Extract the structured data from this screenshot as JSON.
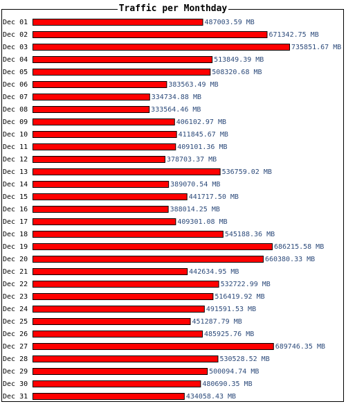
{
  "chart_data": {
    "type": "bar",
    "orientation": "horizontal",
    "title": "Traffic per Monthday",
    "unit": "MB",
    "bar_color": "#ff0000",
    "label_color": "#2c4a7a",
    "categories": [
      "Dec 01",
      "Dec 02",
      "Dec 03",
      "Dec 04",
      "Dec 05",
      "Dec 06",
      "Dec 07",
      "Dec 08",
      "Dec 09",
      "Dec 10",
      "Dec 11",
      "Dec 12",
      "Dec 13",
      "Dec 14",
      "Dec 15",
      "Dec 16",
      "Dec 17",
      "Dec 18",
      "Dec 19",
      "Dec 20",
      "Dec 21",
      "Dec 22",
      "Dec 23",
      "Dec 24",
      "Dec 25",
      "Dec 26",
      "Dec 27",
      "Dec 28",
      "Dec 29",
      "Dec 30",
      "Dec 31"
    ],
    "values": [
      487003.59,
      671342.75,
      735851.67,
      513849.39,
      508320.68,
      383563.49,
      334734.88,
      333564.46,
      406102.97,
      411845.67,
      409101.36,
      378703.37,
      536759.02,
      389070.54,
      441717.5,
      388014.25,
      409301.08,
      545188.36,
      686215.58,
      660380.33,
      442634.95,
      532722.99,
      516419.92,
      491591.53,
      451287.79,
      485925.76,
      689746.35,
      530528.52,
      500094.74,
      480690.35,
      434058.43
    ],
    "value_labels": [
      "487003.59 MB",
      "671342.75 MB",
      "735851.67 MB",
      "513849.39 MB",
      "508320.68 MB",
      "383563.49 MB",
      "334734.88 MB",
      "333564.46 MB",
      "406102.97 MB",
      "411845.67 MB",
      "409101.36 MB",
      "378703.37 MB",
      "536759.02 MB",
      "389070.54 MB",
      "441717.50 MB",
      "388014.25 MB",
      "409301.08 MB",
      "545188.36 MB",
      "686215.58 MB",
      "660380.33 MB",
      "442634.95 MB",
      "532722.99 MB",
      "516419.92 MB",
      "491591.53 MB",
      "451287.79 MB",
      "485925.76 MB",
      "689746.35 MB",
      "530528.52 MB",
      "500094.74 MB",
      "480690.35 MB",
      "434058.43 MB"
    ],
    "xlim": [
      0,
      735851.67
    ]
  }
}
